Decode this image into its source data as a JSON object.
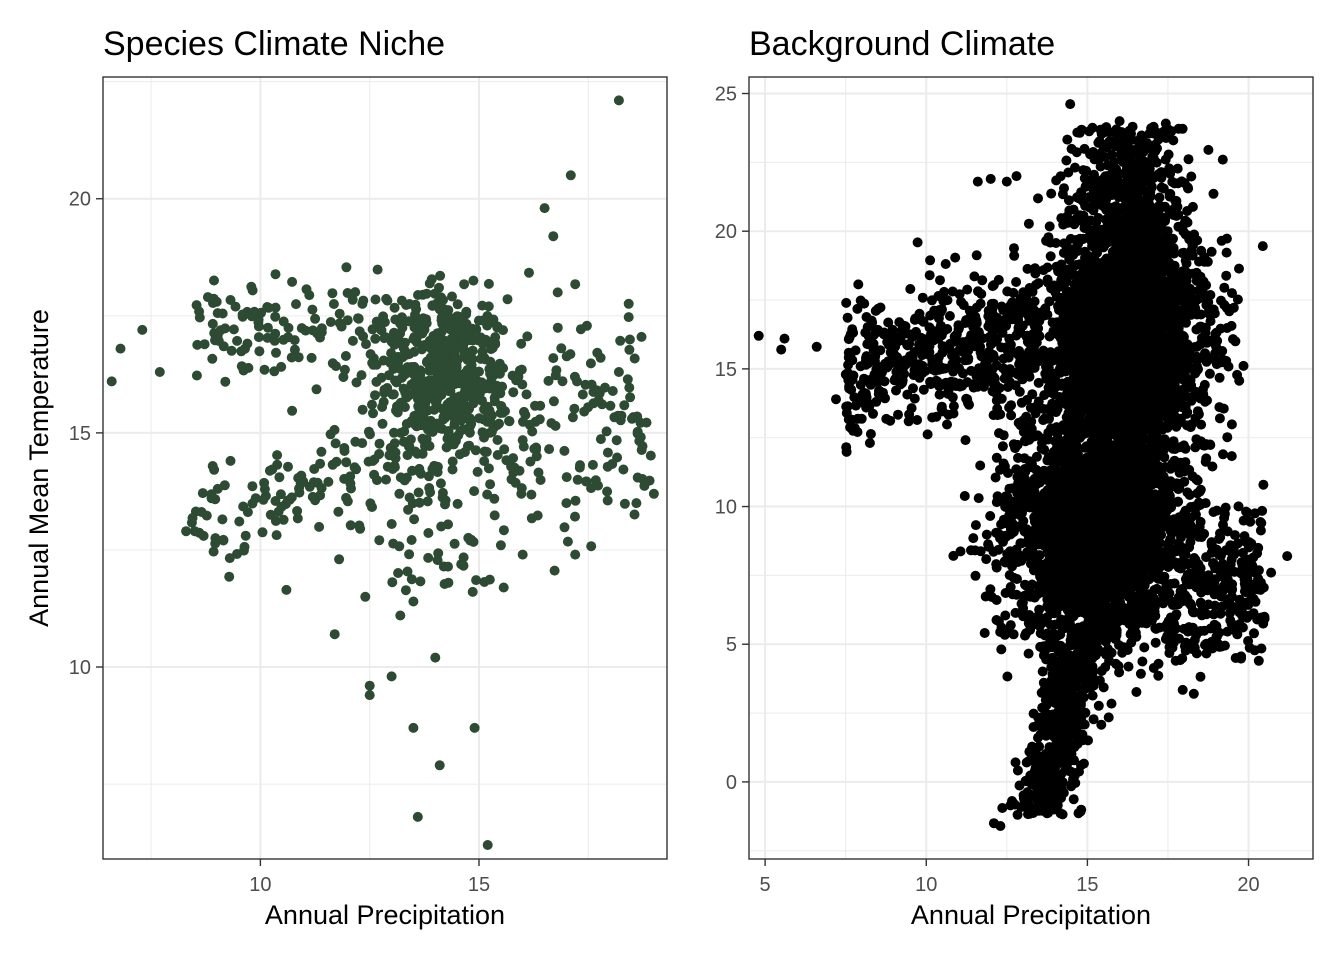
{
  "chart_data": [
    {
      "type": "scatter",
      "title": "Species Climate Niche",
      "xlabel": "Annual Precipitation",
      "ylabel": "Annual Mean Temperature",
      "xlim": [
        6.4,
        19.3
      ],
      "ylim": [
        5.9,
        22.6
      ],
      "x_ticks": [
        10,
        15
      ],
      "y_ticks": [
        10,
        15,
        20
      ],
      "x_tick_labels": [
        "10",
        "15"
      ],
      "y_tick_labels": [
        "10",
        "15",
        "20"
      ],
      "grid": true,
      "point_color": "#2d4a32",
      "series": [
        {
          "x": [
            18.2,
            17.1,
            16.5,
            16.7,
            15.2,
            14.9,
            13.5,
            13.6,
            14.1,
            13.0,
            12.5,
            12.5,
            11.7,
            11.8,
            12.4,
            13.2,
            13.5,
            14.3,
            14.0,
            14.8,
            15.5,
            16.0,
            8.7,
            8.5,
            8.3,
            6.6,
            6.8,
            7.3,
            7.7,
            9.0,
            8.8,
            18.6,
            19.0,
            18.5,
            18.2,
            17.2,
            17.0,
            16.8
          ],
          "y": [
            22.1,
            20.5,
            19.8,
            19.2,
            6.2,
            8.7,
            8.7,
            6.8,
            7.9,
            9.8,
            9.4,
            9.6,
            10.7,
            12.3,
            11.5,
            11.1,
            11.4,
            11.8,
            10.2,
            12.7,
            12.6,
            12.4,
            12.8,
            12.9,
            12.9,
            16.1,
            16.8,
            17.2,
            16.3,
            17.8,
            17.9,
            13.5,
            13.7,
            15.3,
            16.3,
            12.4,
            13.5,
            18.0
          ]
        }
      ]
    },
    {
      "type": "scatter",
      "title": "Background Climate",
      "xlabel": "Annual Precipitation",
      "ylabel": "",
      "xlim": [
        4.5,
        22.0
      ],
      "ylim": [
        -2.8,
        25.6
      ],
      "x_ticks": [
        5,
        10,
        15,
        20
      ],
      "y_ticks": [
        0,
        5,
        10,
        15,
        20,
        25
      ],
      "x_tick_labels": [
        "5",
        "10",
        "15",
        "20"
      ],
      "y_tick_labels": [
        "0",
        "5",
        "10",
        "15",
        "20",
        "25"
      ],
      "grid": true,
      "point_color": "#000000",
      "series": [
        {
          "x": [
            4.8,
            5.5,
            5.6,
            6.6,
            7.2,
            11.6,
            12.0,
            12.5,
            12.8,
            12.1,
            12.3,
            20.3,
            21.2,
            20.7,
            18.3,
            19.2,
            16.0,
            15.5,
            14.4,
            14.8,
            15.2,
            19.6
          ],
          "y": [
            16.2,
            15.7,
            16.1,
            15.8,
            13.9,
            21.8,
            21.9,
            21.8,
            22.0,
            -1.5,
            -1.6,
            8.5,
            8.2,
            7.6,
            3.2,
            22.6,
            24.0,
            23.7,
            1.0,
            0.6,
            3.5,
            4.5
          ]
        }
      ]
    }
  ]
}
